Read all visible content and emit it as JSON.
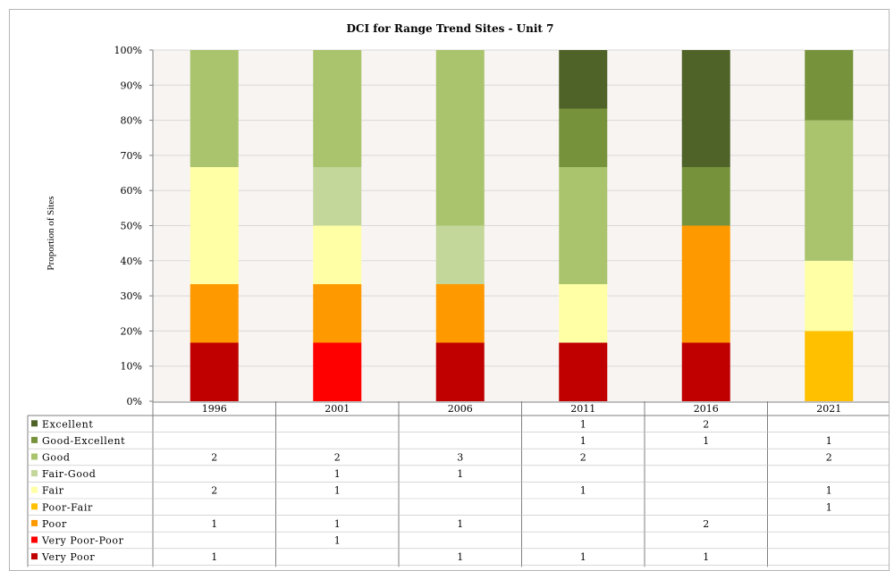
{
  "chart_data": {
    "type": "bar",
    "stacked": true,
    "normalized": true,
    "title": "DCI for Range Trend Sites - Unit 7",
    "ylabel": "Proportion of Sites",
    "xlabel": "",
    "ylim": [
      0,
      100
    ],
    "yticks": [
      "0%",
      "10%",
      "20%",
      "30%",
      "40%",
      "50%",
      "60%",
      "70%",
      "80%",
      "90%",
      "100%"
    ],
    "categories": [
      "1996",
      "2001",
      "2006",
      "2011",
      "2016",
      "2021"
    ],
    "legend_placement": "data-table-left",
    "series": [
      {
        "name": "Very Poor",
        "color": "#c00000",
        "values": [
          1,
          null,
          1,
          1,
          1,
          null
        ]
      },
      {
        "name": "Very Poor-Poor",
        "color": "#ff0000",
        "values": [
          null,
          1,
          null,
          null,
          null,
          null
        ]
      },
      {
        "name": "Poor",
        "color": "#ff9900",
        "values": [
          1,
          1,
          1,
          null,
          2,
          null
        ]
      },
      {
        "name": "Poor-Fair",
        "color": "#ffc000",
        "values": [
          null,
          null,
          null,
          null,
          null,
          1
        ]
      },
      {
        "name": "Fair",
        "color": "#ffffa6",
        "values": [
          2,
          1,
          null,
          1,
          null,
          1
        ]
      },
      {
        "name": "Fair-Good",
        "color": "#c4d79b",
        "values": [
          null,
          1,
          1,
          null,
          null,
          null
        ]
      },
      {
        "name": "Good",
        "color": "#a9c46c",
        "values": [
          2,
          2,
          3,
          2,
          null,
          2
        ]
      },
      {
        "name": "Good-Excellent",
        "color": "#76933c",
        "values": [
          null,
          null,
          null,
          1,
          1,
          1
        ]
      },
      {
        "name": "Excellent",
        "color": "#4f6228",
        "values": [
          null,
          null,
          null,
          1,
          2,
          null
        ]
      }
    ],
    "colors": {
      "plot_background": "#f8f4f2",
      "gridline": "#d9d9d9",
      "border": "#7f7f7f"
    }
  }
}
